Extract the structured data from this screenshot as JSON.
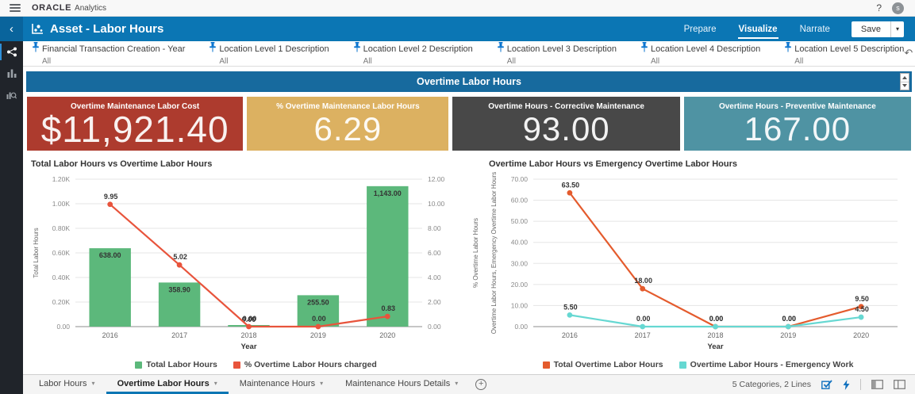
{
  "app_bar": {
    "brand_bold": "ORACLE",
    "brand_light": "Analytics",
    "help_label": "?",
    "avatar_initial": "s"
  },
  "title_bar": {
    "back_glyph": "‹",
    "title": "Asset - Labor Hours",
    "mode_tabs": [
      {
        "label": "Prepare",
        "active": false
      },
      {
        "label": "Visualize",
        "active": true
      },
      {
        "label": "Narrate",
        "active": false
      }
    ],
    "save_label": "Save",
    "save_caret": "▾"
  },
  "filter_bar": {
    "filters": [
      {
        "label": "Financial Transaction Creation - Year",
        "value": "All"
      },
      {
        "label": "Location Level 1 Description",
        "value": "All"
      },
      {
        "label": "Location Level 2 Description",
        "value": "All"
      },
      {
        "label": "Location Level 3 Description",
        "value": "All"
      },
      {
        "label": "Location Level 4 Description",
        "value": "All"
      },
      {
        "label": "Location Level 5 Description",
        "value": "All"
      }
    ],
    "toolbar_icons": [
      "undo-icon",
      "redo-icon",
      "share-icon",
      "refresh-icon",
      "menu-icon"
    ],
    "undo_glyph": "↶",
    "redo_glyph": "↷",
    "menu_glyph": "≡"
  },
  "sidebar": {
    "icons": [
      "network-visualize-icon",
      "bar-chart-icon",
      "chart-explore-icon"
    ]
  },
  "banner": {
    "title": "Overtime Labor Hours"
  },
  "kpis": [
    {
      "title": "Overtime Maintenance Labor Cost",
      "value": "$11,921.40",
      "color": "#ad3b2e",
      "flex": 272
    },
    {
      "title": "% Overtime Maintenance Labor Hours",
      "value": "6.29",
      "color": "#dcb161",
      "flex": 254
    },
    {
      "title": "Overtime Hours - Corrective Maintenance",
      "value": "93.00",
      "color": "#484848",
      "flex": 286
    },
    {
      "title": "Overtime Hours - Preventive Maintenance",
      "value": "167.00",
      "color": "#4f93a3",
      "flex": 286
    }
  ],
  "chart_data": [
    {
      "type": "bar",
      "title": "Total Labor Hours vs Overtime Labor Hours",
      "categories": [
        "2016",
        "2017",
        "2018",
        "2019",
        "2020"
      ],
      "series": [
        {
          "name": "Total Labor Hours",
          "kind": "bar",
          "axis": "left",
          "color": "#5cb87b",
          "values": [
            638.0,
            358.9,
            0.0,
            255.5,
            1143.0
          ],
          "labels": [
            "638.00",
            "358.90",
            "0.00",
            "255.50",
            "1,143.00"
          ]
        },
        {
          "name": "% Overtime Labor Hours charged",
          "kind": "line",
          "axis": "right",
          "color": "#e8543c",
          "values": [
            9.95,
            5.02,
            0.0,
            0.0,
            0.83
          ],
          "labels": [
            "9.95",
            "5.02",
            "0.00",
            "0.00",
            "0.83"
          ]
        }
      ],
      "xlabel": "Year",
      "ylabel_left": "Total Labor Hours",
      "ylabel_right": "% Overtime Labor Hours",
      "ylim_left": [
        0,
        1200
      ],
      "yticks_left": [
        "1.20K",
        "1.00K",
        "0.80K",
        "0.60K",
        "0.40K",
        "0.20K",
        "0.00"
      ],
      "ylim_right": [
        0,
        12
      ],
      "yticks_right": [
        "12.00",
        "10.00",
        "8.00",
        "6.00",
        "4.00",
        "2.00",
        "0.00"
      ],
      "grid": true,
      "legend_position": "bottom"
    },
    {
      "type": "line",
      "title": "Overtime Labor Hours vs Emergency Overtime Labor Hours",
      "categories": [
        "2016",
        "2017",
        "2018",
        "2019",
        "2020"
      ],
      "series": [
        {
          "name": "Total Overtime Labor Hours",
          "kind": "line",
          "axis": "left",
          "color": "#e45b2d",
          "values": [
            63.5,
            18.0,
            0.0,
            0.0,
            9.5
          ],
          "labels": [
            "63.50",
            "18.00",
            "0.00",
            "0.00",
            "9.50"
          ]
        },
        {
          "name": "Overtime Labor Hours - Emergency Work",
          "kind": "line",
          "axis": "left",
          "color": "#66d8d2",
          "values": [
            5.5,
            0.0,
            0.0,
            0.0,
            4.5
          ],
          "labels": [
            "5.50",
            "0.00",
            "0.00",
            "0.00",
            "4.50"
          ]
        }
      ],
      "xlabel": "Year",
      "ylabel_left": "Overtime Labor Hours, Emergency Overtime Labor Hours",
      "ylim_left": [
        0,
        70
      ],
      "yticks_left": [
        "70.00",
        "60.00",
        "50.00",
        "40.00",
        "30.00",
        "20.00",
        "10.00",
        "0.00"
      ],
      "grid": true,
      "legend_position": "bottom"
    }
  ],
  "footer": {
    "canvas_tabs": [
      {
        "label": "Labor Hours",
        "active": false
      },
      {
        "label": "Overtime Labor Hours",
        "active": true
      },
      {
        "label": "Maintenance Hours",
        "active": false
      },
      {
        "label": "Maintenance Hours Details",
        "active": false
      }
    ],
    "tab_caret": "▾",
    "add_label": "+",
    "status": "5 Categories, 2 Lines",
    "icons": [
      "select-check-icon",
      "auto-apply-bolt-icon",
      "panel-layout-left-icon",
      "panel-layout-split-icon"
    ]
  }
}
